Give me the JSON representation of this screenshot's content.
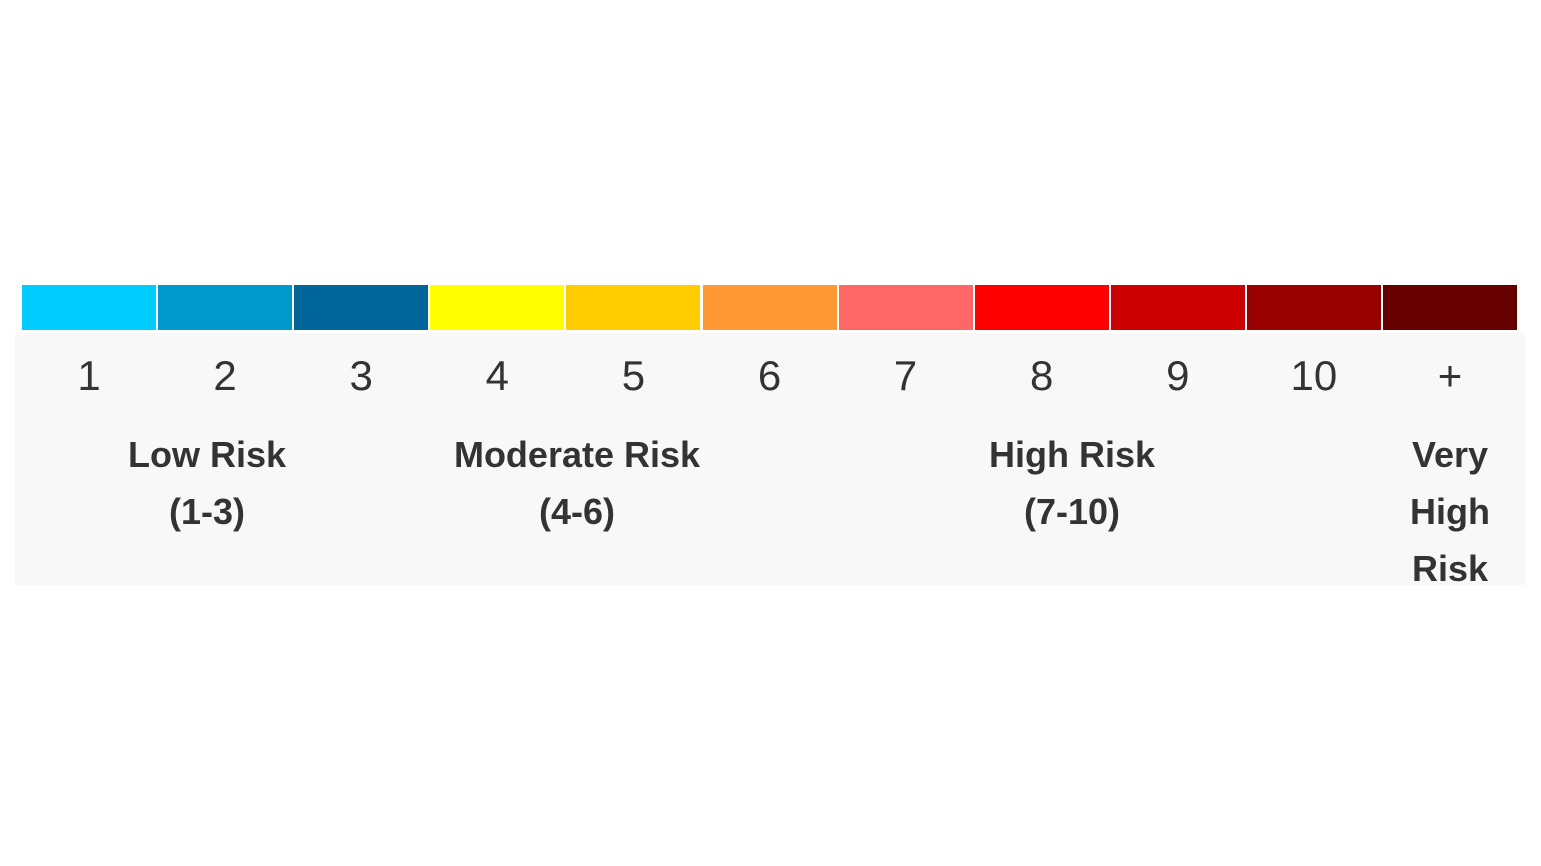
{
  "scale": {
    "items": [
      {
        "label": "1",
        "color": "#00ccff"
      },
      {
        "label": "2",
        "color": "#0099cc"
      },
      {
        "label": "3",
        "color": "#006699"
      },
      {
        "label": "4",
        "color": "#ffff00"
      },
      {
        "label": "5",
        "color": "#ffcc00"
      },
      {
        "label": "6",
        "color": "#ff9933"
      },
      {
        "label": "7",
        "color": "#ff6666"
      },
      {
        "label": "8",
        "color": "#ff0000"
      },
      {
        "label": "9",
        "color": "#cc0000"
      },
      {
        "label": "10",
        "color": "#990000"
      },
      {
        "label": "+",
        "color": "#660000"
      }
    ],
    "groups": [
      {
        "label": "Low Risk",
        "range": "(1-3)"
      },
      {
        "label": "Moderate Risk",
        "range": "(4-6)"
      },
      {
        "label": "High Risk",
        "range": "(7-10)"
      },
      {
        "label": "Very High Risk"
      }
    ]
  }
}
